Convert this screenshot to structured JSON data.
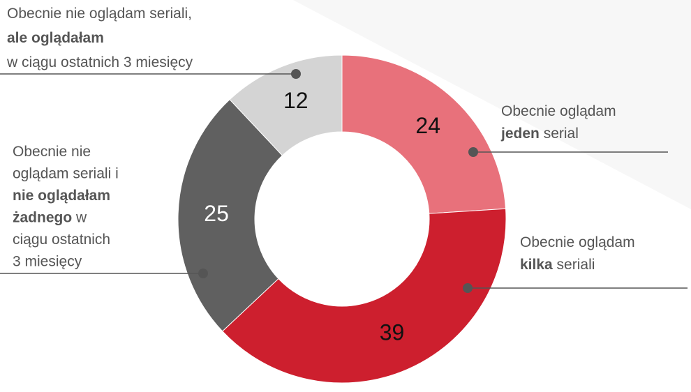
{
  "chart_data": {
    "type": "donut",
    "values": [
      24,
      39,
      25,
      12
    ],
    "colors": [
      "#e8717b",
      "#cd1f2e",
      "#606060",
      "#d4d4d4"
    ],
    "value_label_colors": [
      "#111111",
      "#111111",
      "#ffffff",
      "#111111"
    ],
    "labels": [
      [
        [
          {
            "text": "Obecnie oglądam",
            "bold": false
          }
        ],
        [
          {
            "text": "jeden",
            "bold": true
          },
          {
            "text": " serial",
            "bold": false
          }
        ]
      ],
      [
        [
          {
            "text": "Obecnie oglądam",
            "bold": false
          }
        ],
        [
          {
            "text": "kilka",
            "bold": true
          },
          {
            "text": " seriali",
            "bold": false
          }
        ]
      ],
      [
        [
          {
            "text": "Obecnie nie",
            "bold": false
          }
        ],
        [
          {
            "text": "oglądam seriali i",
            "bold": false
          }
        ],
        [
          {
            "text": "nie oglądałam",
            "bold": true
          }
        ],
        [
          {
            "text": "żadnego",
            "bold": true
          },
          {
            "text": " w",
            "bold": false
          }
        ],
        [
          {
            "text": "ciągu ostatnich",
            "bold": false
          }
        ],
        [
          {
            "text": "3 miesięcy",
            "bold": false
          }
        ]
      ],
      [
        [
          {
            "text": "Obecnie nie oglądam seriali,",
            "bold": false
          }
        ],
        [
          {
            "text": "ale oglądałam",
            "bold": true
          }
        ],
        [
          {
            "text": "w ciągu ostatnich 3 miesięcy",
            "bold": false
          }
        ]
      ]
    ]
  }
}
